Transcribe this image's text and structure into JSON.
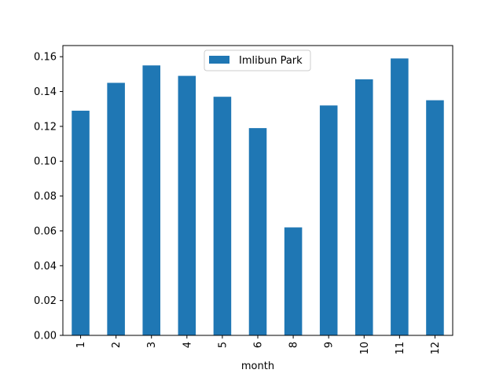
{
  "chart_data": {
    "type": "bar",
    "title": "",
    "xlabel": "month",
    "ylabel": "",
    "categories": [
      "1",
      "2",
      "3",
      "4",
      "5",
      "6",
      "8",
      "9",
      "10",
      "11",
      "12"
    ],
    "series": [
      {
        "name": "Imlibun Park",
        "color": "#1f77b4",
        "values": [
          0.129,
          0.145,
          0.155,
          0.149,
          0.137,
          0.119,
          0.062,
          0.132,
          0.147,
          0.159,
          0.135
        ]
      }
    ],
    "ylim": [
      0,
      0.1664
    ],
    "yticks": [
      "0.00",
      "0.02",
      "0.04",
      "0.06",
      "0.08",
      "0.10",
      "0.12",
      "0.14",
      "0.16"
    ],
    "grid": false,
    "legend_position": "top-center"
  }
}
